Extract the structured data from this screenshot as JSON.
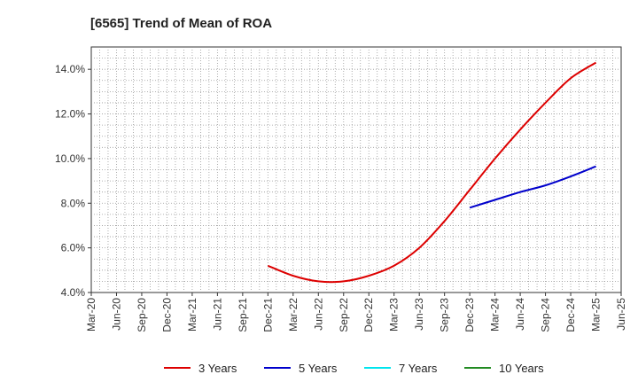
{
  "chart_data": {
    "type": "line",
    "title": "[6565]  Trend of Mean of ROA",
    "xlabel": "",
    "ylabel": "",
    "x_ticks": [
      "Mar-20",
      "Jun-20",
      "Sep-20",
      "Dec-20",
      "Mar-21",
      "Jun-21",
      "Sep-21",
      "Dec-21",
      "Mar-22",
      "Jun-22",
      "Sep-22",
      "Dec-22",
      "Mar-23",
      "Jun-23",
      "Sep-23",
      "Dec-23",
      "Mar-24",
      "Jun-24",
      "Sep-24",
      "Dec-24",
      "Mar-25",
      "Jun-25"
    ],
    "y_ticks": [
      "4.0%",
      "6.0%",
      "8.0%",
      "10.0%",
      "12.0%",
      "14.0%"
    ],
    "ylim": [
      4.0,
      15.0
    ],
    "y_tick_values": [
      4,
      6,
      8,
      10,
      12,
      14
    ],
    "grid": true,
    "legend_position": "bottom",
    "series": [
      {
        "name": "3 Years",
        "color": "#dd0000",
        "x": [
          "Dec-21",
          "Mar-22",
          "Jun-22",
          "Sep-22",
          "Dec-22",
          "Mar-23",
          "Jun-23",
          "Sep-23",
          "Dec-23",
          "Mar-24",
          "Jun-24",
          "Sep-24",
          "Dec-24",
          "Mar-25"
        ],
        "values": [
          5.2,
          4.75,
          4.5,
          4.5,
          4.75,
          5.2,
          6.0,
          7.2,
          8.6,
          10.0,
          11.3,
          12.5,
          13.6,
          14.3
        ]
      },
      {
        "name": "5 Years",
        "color": "#0000cc",
        "x": [
          "Dec-23",
          "Mar-24",
          "Jun-24",
          "Sep-24",
          "Dec-24",
          "Mar-25"
        ],
        "values": [
          7.8,
          8.15,
          8.5,
          8.8,
          9.2,
          9.65
        ]
      },
      {
        "name": "7 Years",
        "color": "#00e5ee",
        "x": [],
        "values": []
      },
      {
        "name": "10 Years",
        "color": "#228b22",
        "x": [],
        "values": []
      }
    ]
  }
}
